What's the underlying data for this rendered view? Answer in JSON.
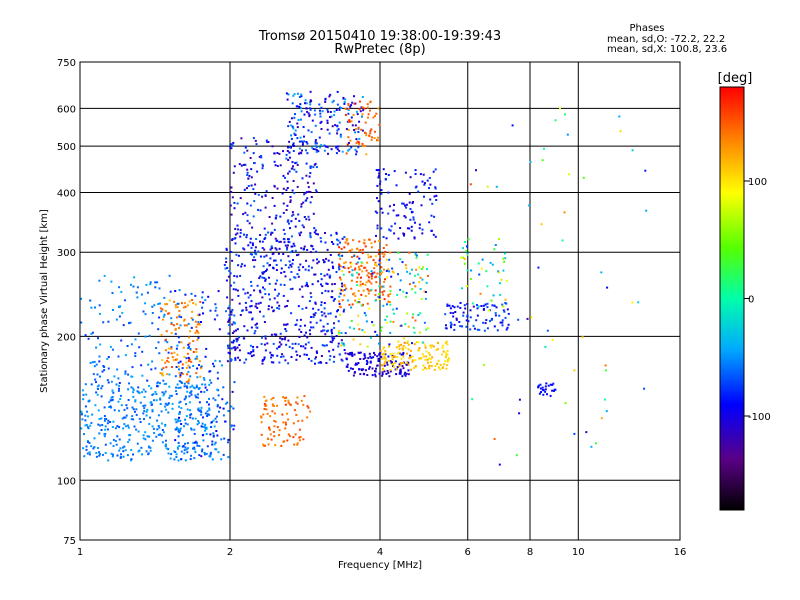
{
  "chart_data": {
    "type": "scatter",
    "title": "Tromsø 20150410 19:38:00-19:39:43",
    "subtitle": "RwPretec (8p)",
    "xlabel": "Frequency [MHz]",
    "ylabel": "Stationary phase Virtual Height [km]",
    "xscale": "log",
    "yscale": "log",
    "xlim": [
      1,
      16
    ],
    "ylim": [
      75,
      750
    ],
    "xticks": [
      1,
      2,
      4,
      6,
      8,
      10,
      16
    ],
    "xtick_labels": [
      "1",
      "2",
      "4",
      "6",
      "8",
      "10",
      "16"
    ],
    "yticks": [
      75,
      100,
      200,
      300,
      400,
      500,
      600,
      750
    ],
    "ytick_labels": [
      "75",
      "100",
      "200",
      "300",
      "400",
      "500",
      "600",
      "750"
    ],
    "grid": true,
    "stats": {
      "title": "Phases",
      "line1": "mean, sd,O: -72.2, 22.2",
      "line2": "mean, sd,X: 100.8, 23.6"
    },
    "colorbar": {
      "label": "[deg]",
      "range": [
        -180,
        180
      ],
      "ticks": [
        100,
        0,
        -100
      ],
      "tick_labels": [
        "100",
        "0",
        "-100"
      ],
      "colormap": "rainbow (black-purple-blue-cyan-green-yellow-orange-red)"
    },
    "clusters": [
      {
        "f": [
          1.0,
          1.9
        ],
        "h": [
          110,
          160
        ],
        "phase": [
          -70,
          -40
        ],
        "n": 420
      },
      {
        "f": [
          1.0,
          1.6
        ],
        "h": [
          155,
          270
        ],
        "phase": [
          -80,
          -40
        ],
        "n": 160
      },
      {
        "f": [
          1.45,
          1.75
        ],
        "h": [
          160,
          240
        ],
        "phase": [
          110,
          160
        ],
        "n": 110
      },
      {
        "f": [
          1.55,
          2.05
        ],
        "h": [
          110,
          250
        ],
        "phase": [
          -100,
          -45
        ],
        "n": 160
      },
      {
        "f": [
          1.95,
          3.4
        ],
        "h": [
          175,
          330
        ],
        "phase": [
          -120,
          -60
        ],
        "n": 520
      },
      {
        "f": [
          2.0,
          3.0
        ],
        "h": [
          300,
          520
        ],
        "phase": [
          -130,
          -60
        ],
        "n": 240
      },
      {
        "f": [
          2.3,
          2.9
        ],
        "h": [
          118,
          150
        ],
        "phase": [
          130,
          160
        ],
        "n": 90
      },
      {
        "f": [
          2.6,
          3.7
        ],
        "h": [
          480,
          650
        ],
        "phase": [
          -120,
          -40
        ],
        "n": 180
      },
      {
        "f": [
          3.3,
          4.2
        ],
        "h": [
          230,
          320
        ],
        "phase": [
          120,
          170
        ],
        "n": 150
      },
      {
        "f": [
          3.4,
          4.0
        ],
        "h": [
          480,
          620
        ],
        "phase": [
          120,
          170
        ],
        "n": 60
      },
      {
        "f": [
          3.4,
          4.6
        ],
        "h": [
          165,
          185
        ],
        "phase": [
          -120,
          -90
        ],
        "n": 130
      },
      {
        "f": [
          4.0,
          5.5
        ],
        "h": [
          170,
          195
        ],
        "phase": [
          95,
          125
        ],
        "n": 140
      },
      {
        "f": [
          3.9,
          5.2
        ],
        "h": [
          320,
          450
        ],
        "phase": [
          -110,
          -70
        ],
        "n": 110
      },
      {
        "f": [
          3.3,
          5.0
        ],
        "h": [
          190,
          300
        ],
        "phase": [
          -100,
          150
        ],
        "n": 170
      },
      {
        "f": [
          5.4,
          7.4
        ],
        "h": [
          205,
          235
        ],
        "phase": [
          -110,
          -60
        ],
        "n": 90
      },
      {
        "f": [
          5.8,
          7.2
        ],
        "h": [
          220,
          320
        ],
        "phase": [
          -110,
          120
        ],
        "n": 45
      },
      {
        "f": [
          8.3,
          9.0
        ],
        "h": [
          150,
          160
        ],
        "phase": [
          -100,
          -80
        ],
        "n": 25
      },
      {
        "f": [
          6.0,
          14.0
        ],
        "h": [
          95,
          600
        ],
        "phase": [
          -130,
          160
        ],
        "n": 55
      }
    ]
  }
}
